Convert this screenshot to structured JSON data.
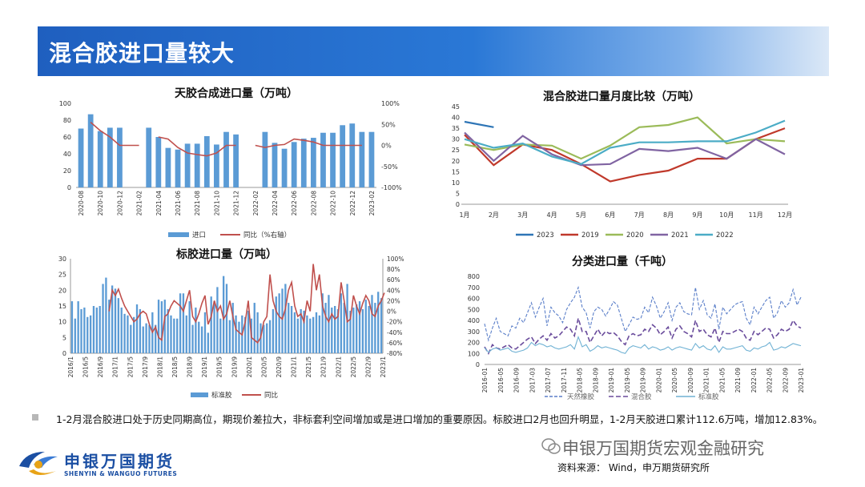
{
  "header": {
    "title": "混合胶进口量较大"
  },
  "chart_data": [
    {
      "id": "natural_rubber",
      "type": "bar",
      "title": "天胶合成进口量（万吨）",
      "categories": [
        "2020-08",
        "2020-09",
        "2020-10",
        "2020-11",
        "2020-12",
        "2021-01",
        "2021-02",
        "2021-03",
        "2021-04",
        "2021-05",
        "2021-06",
        "2021-07",
        "2021-08",
        "2021-09",
        "2021-10",
        "2021-11",
        "2021-12",
        "2022-01",
        "2022-02",
        "2022-03",
        "2022-04",
        "2022-05",
        "2022-06",
        "2022-07",
        "2022-08",
        "2022-09",
        "2022-10",
        "2022-11",
        "2022-12",
        "2023-01",
        "2023-02"
      ],
      "x_tick_labels": [
        "2020-08",
        "2020-10",
        "2020-12",
        "2021-02",
        "2021-04",
        "2021-06",
        "2021-08",
        "2021-10",
        "2021-12",
        "2022-02",
        "2022-04",
        "2022-06",
        "2022-08",
        "2022-10",
        "2022-12",
        "2023-02"
      ],
      "ylim": [
        0,
        100
      ],
      "y_ticks": [
        0,
        20,
        40,
        60,
        80,
        100
      ],
      "y2lim": [
        -100,
        100
      ],
      "y2_ticks": [
        "100%",
        "50%",
        "0%",
        "-50%",
        "-100%"
      ],
      "series": [
        {
          "name": "进口",
          "type": "bar",
          "color": "#5b9bd5",
          "values": [
            70,
            87,
            67,
            71,
            71,
            null,
            null,
            71,
            60,
            47,
            45,
            52,
            52,
            61,
            51,
            66,
            63,
            null,
            null,
            66,
            53,
            46,
            54,
            58,
            59,
            65,
            65,
            74,
            76,
            66,
            66
          ]
        },
        {
          "name": "同比（%右轴）",
          "type": "line",
          "axis": "right",
          "color": "#c0504d",
          "values": [
            null,
            55,
            35,
            20,
            0,
            0,
            0,
            null,
            20,
            15,
            -5,
            -18,
            -22,
            -25,
            -18,
            0,
            0,
            null,
            0,
            -5,
            0,
            2,
            15,
            12,
            8,
            0,
            0,
            0,
            0,
            0,
            null
          ]
        }
      ]
    },
    {
      "id": "mixed_rubber_monthly",
      "type": "line",
      "title": "混合胶进口量月度比较（万吨）",
      "categories": [
        "1月",
        "2月",
        "3月",
        "4月",
        "5月",
        "6月",
        "7月",
        "8月",
        "9月",
        "10月",
        "11月",
        "12月"
      ],
      "ylim": [
        0,
        45
      ],
      "y_ticks": [
        0,
        5,
        10,
        15,
        20,
        25,
        30,
        35,
        40,
        45
      ],
      "legend": "bottom",
      "series": [
        {
          "name": "2023",
          "color": "#2e75b6",
          "values": [
            38,
            35.5,
            null,
            null,
            null,
            null,
            null,
            null,
            null,
            null,
            null,
            null
          ]
        },
        {
          "name": "2019",
          "color": "#c0392b",
          "values": [
            32,
            18,
            27.5,
            25,
            18.5,
            10.5,
            13.5,
            15.5,
            21,
            21,
            30,
            35
          ]
        },
        {
          "name": "2020",
          "color": "#9bbb59",
          "values": [
            27.5,
            25,
            27.5,
            27,
            21,
            27,
            35.5,
            36.5,
            40,
            28,
            30,
            29
          ]
        },
        {
          "name": "2021",
          "color": "#8064a2",
          "values": [
            33,
            20,
            31.5,
            23,
            18,
            18.5,
            25.5,
            24.5,
            26,
            21,
            30,
            23
          ]
        },
        {
          "name": "2022",
          "color": "#4bacc6",
          "values": [
            30,
            26,
            28,
            22,
            18.5,
            26,
            28.5,
            28.5,
            29,
            29,
            33,
            38.5
          ]
        }
      ]
    },
    {
      "id": "standard_rubber",
      "type": "bar",
      "title": "标胶进口量（万吨）",
      "x_tick_labels": [
        "2016/1",
        "2016/5",
        "2016/9",
        "2017/1",
        "2017/5",
        "2017/9",
        "2018/1",
        "2018/5",
        "2018/9",
        "2019/1",
        "2019/5",
        "2019/9",
        "2020/1",
        "2020/5",
        "2020/9",
        "2021/1",
        "2021/5",
        "2021/9",
        "2022/1",
        "2022/5",
        "2022/9",
        "2023/1"
      ],
      "ylim": [
        0,
        30
      ],
      "y_ticks": [
        0,
        5,
        10,
        15,
        20,
        25,
        30
      ],
      "y2lim": [
        -80,
        100
      ],
      "y2_ticks": [
        "100%",
        "80%",
        "60%",
        "40%",
        "20%",
        "0%",
        "-20%",
        "-40%",
        "-60%",
        "-80%"
      ],
      "series": [
        {
          "name": "标准胶",
          "type": "bar",
          "color": "#5b9bd5",
          "values": [
            16.5,
            11,
            16.5,
            14,
            14.5,
            11.5,
            12,
            15,
            14.5,
            15,
            22,
            24,
            17,
            21.5,
            20.5,
            17.5,
            14.5,
            12.5,
            12,
            9,
            11.5,
            15.5,
            14,
            8.5,
            9.5,
            9,
            13,
            9,
            17,
            16.5,
            17,
            14,
            12,
            11,
            11,
            19,
            19,
            12,
            16.5,
            9,
            14.5,
            10,
            8.5,
            13,
            6.5,
            18,
            16.5,
            21,
            11,
            24.5,
            22,
            10.5,
            16,
            12,
            10,
            12,
            11.5,
            13.5,
            11,
            16,
            13,
            9.5,
            9,
            9.5,
            10.5,
            14,
            18,
            19,
            20.5,
            22,
            16,
            15,
            13,
            11,
            14,
            13.5,
            12,
            11,
            11.5,
            13,
            12,
            19,
            16,
            18.5,
            14.5,
            15,
            14,
            19,
            16,
            22,
            13.5,
            14.5,
            15.5,
            16.5,
            14,
            17,
            15,
            18.5,
            16,
            19.5,
            17.5
          ]
        },
        {
          "name": "同比",
          "type": "line",
          "axis": "right",
          "color": "#c0504d",
          "values": [
            null,
            null,
            null,
            null,
            null,
            null,
            null,
            null,
            null,
            null,
            null,
            null,
            0,
            40,
            30,
            42,
            25,
            10,
            0,
            -10,
            -20,
            -15,
            -5,
            0,
            -5,
            -25,
            -40,
            -30,
            -50,
            -55,
            -10,
            -5,
            10,
            20,
            15,
            10,
            0,
            20,
            40,
            -10,
            -20,
            -5,
            15,
            30,
            -25,
            -10,
            20,
            0,
            10,
            -15,
            -5,
            20,
            -10,
            -35,
            -40,
            -45,
            -20,
            20,
            -50,
            -55,
            -60,
            -50,
            -20,
            -10,
            70,
            20,
            0,
            -10,
            -15,
            5,
            40,
            55,
            10,
            -10,
            -5,
            -20,
            20,
            0,
            90,
            40,
            70,
            10,
            -10,
            -20,
            -5,
            -15,
            -10,
            55,
            20,
            -20,
            -15,
            30,
            10,
            -5,
            15,
            30,
            20,
            -5,
            -10,
            10,
            20,
            35
          ]
        }
      ]
    },
    {
      "id": "classified_imports",
      "type": "line",
      "title": "分类进口量（千吨）",
      "x_tick_labels": [
        "2016-01",
        "2016-05",
        "2016-09",
        "2017-03",
        "2017-07",
        "2017-11",
        "2018-05",
        "2018-09",
        "2019-01",
        "2019-05",
        "2019-09",
        "2020-01",
        "2020-05",
        "2020-09",
        "2021-01",
        "2021-05",
        "2021-09",
        "2022-01",
        "2022-05",
        "2022-09",
        "2023-01"
      ],
      "ylim": [
        0,
        800
      ],
      "y_ticks": [
        0,
        100,
        200,
        300,
        400,
        500,
        600,
        700,
        800
      ],
      "legend": "bottom",
      "series": [
        {
          "name": "天然橡胶",
          "color": "#5b7fc9",
          "dash": "dashed",
          "values": [
            370,
            220,
            330,
            420,
            300,
            280,
            260,
            350,
            330,
            420,
            380,
            470,
            560,
            430,
            520,
            600,
            350,
            520,
            470,
            440,
            380,
            500,
            560,
            610,
            700,
            520,
            470,
            330,
            480,
            520,
            500,
            440,
            500,
            570,
            540,
            420,
            300,
            360,
            430,
            410,
            420,
            520,
            470,
            610,
            530,
            420,
            480,
            560,
            400,
            520,
            560,
            480,
            460,
            450,
            700,
            500,
            580,
            450,
            420,
            550,
            320,
            520,
            460,
            500,
            540,
            560,
            570,
            420,
            360,
            520,
            460,
            520,
            580,
            610,
            420,
            470,
            580,
            520,
            560,
            680,
            540,
            610
          ]
        },
        {
          "name": "混合胶",
          "color": "#6a4c9c",
          "dash": "long-dashed",
          "values": [
            160,
            100,
            180,
            150,
            140,
            160,
            180,
            150,
            140,
            170,
            200,
            230,
            250,
            190,
            230,
            260,
            220,
            280,
            240,
            260,
            300,
            340,
            320,
            260,
            420,
            300,
            300,
            200,
            260,
            320,
            260,
            300,
            280,
            290,
            260,
            210,
            180,
            260,
            280,
            260,
            270,
            320,
            300,
            360,
            330,
            270,
            300,
            340,
            240,
            320,
            350,
            300,
            280,
            250,
            400,
            300,
            320,
            270,
            250,
            330,
            200,
            300,
            280,
            280,
            300,
            320,
            300,
            240,
            220,
            300,
            270,
            300,
            330,
            320,
            240,
            270,
            320,
            300,
            320,
            400,
            350,
            330
          ]
        },
        {
          "name": "标准胶",
          "color": "#70b2d4",
          "dash": "solid",
          "values": [
            150,
            110,
            140,
            150,
            130,
            140,
            150,
            120,
            110,
            120,
            130,
            150,
            200,
            170,
            190,
            180,
            160,
            170,
            150,
            140,
            150,
            160,
            180,
            140,
            250,
            160,
            180,
            120,
            140,
            170,
            150,
            160,
            150,
            140,
            130,
            110,
            100,
            150,
            170,
            160,
            150,
            180,
            140,
            160,
            150,
            130,
            140,
            160,
            130,
            150,
            160,
            150,
            140,
            130,
            190,
            150,
            170,
            140,
            130,
            170,
            110,
            160,
            140,
            140,
            150,
            160,
            170,
            130,
            120,
            150,
            140,
            160,
            170,
            200,
            130,
            140,
            160,
            150,
            170,
            190,
            180,
            170
          ]
        }
      ]
    }
  ],
  "panels": {
    "natural_rubber": {
      "title": "天胶合成进口量（万吨）",
      "legend": [
        "进口",
        "同比（%右轴）"
      ]
    },
    "mixed_monthly": {
      "title": "混合胶进口量月度比较（万吨）",
      "legend": [
        "2023",
        "2019",
        "2020",
        "2021",
        "2022"
      ]
    },
    "standard_rubber": {
      "title": "标胶进口量（万吨）",
      "legend": [
        "标准胶",
        "同比"
      ]
    },
    "classified": {
      "title": "分类进口量（千吨）",
      "legend": [
        "天然橡胶",
        "混合胶",
        "标准胶"
      ]
    }
  },
  "note": {
    "text": "1-2月混合胶进口处于历史同期高位，期现价差拉大，非标套利空间增加或是进口增加的重要原因。标胶进口2月也回升明显，1-2月天胶进口累计112.6万吨，增加12.83%。"
  },
  "footer": {
    "logo_cn": "申银万国期货",
    "logo_en": "SHENYIN & WANGUO FUTURES",
    "wechat": "申银万国期货宏观金融研究",
    "source": "资料来源： Wind，申万期货研究所"
  }
}
